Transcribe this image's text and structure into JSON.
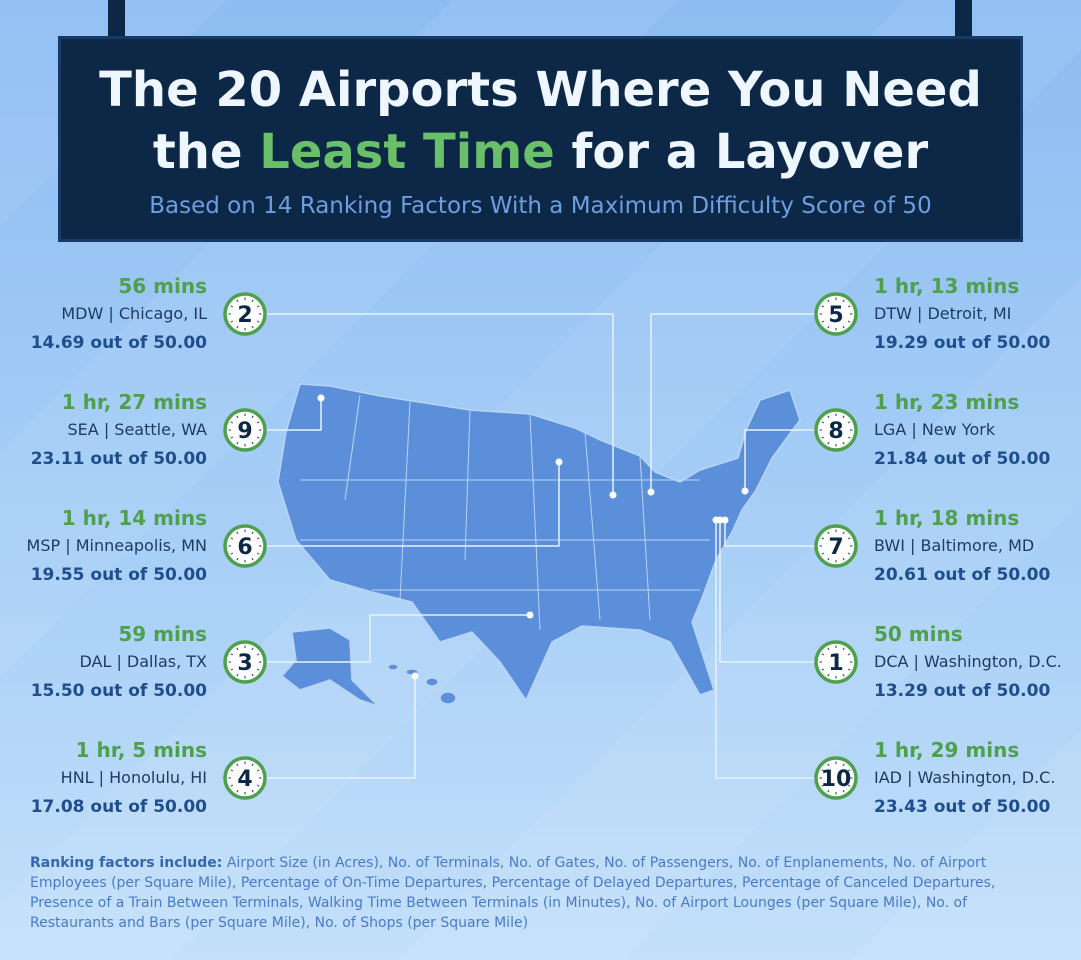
{
  "header": {
    "title_line1": "The 20 Airports Where You Need",
    "title_line2_start": "the",
    "title_highlight": "Least Time",
    "title_line2_end": "for a Layover",
    "subtitle": "Based on 14 Ranking Factors With a Maximum Difficulty Score of 50"
  },
  "left": [
    {
      "rank": 2,
      "time": "56 mins",
      "airport": "MDW | Chicago, IL",
      "score": "14.69 out of 50.00"
    },
    {
      "rank": 9,
      "time": "1 hr, 27 mins",
      "airport": "SEA | Seattle, WA",
      "score": "23.11 out of 50.00"
    },
    {
      "rank": 6,
      "time": "1 hr, 14 mins",
      "airport": "MSP | Minneapolis, MN",
      "score": "19.55 out of 50.00"
    },
    {
      "rank": 3,
      "time": "59 mins",
      "airport": "DAL | Dallas, TX",
      "score": "15.50 out of 50.00"
    },
    {
      "rank": 4,
      "time": "1 hr, 5 mins",
      "airport": "HNL | Honolulu, HI",
      "score": "17.08 out of 50.00"
    }
  ],
  "right": [
    {
      "rank": 5,
      "time": "1 hr, 13 mins",
      "airport": "DTW | Detroit, MI",
      "score": "19.29 out of 50.00"
    },
    {
      "rank": 8,
      "time": "1 hr, 23 mins",
      "airport": "LGA | New York",
      "score": "21.84 out of 50.00"
    },
    {
      "rank": 7,
      "time": "1 hr, 18 mins",
      "airport": "BWI | Baltimore, MD",
      "score": "20.61 out of 50.00"
    },
    {
      "rank": 1,
      "time": "50 mins",
      "airport": "DCA | Washington, D.C.",
      "score": "13.29 out of 50.00"
    },
    {
      "rank": 10,
      "time": "1 hr, 29 mins",
      "airport": "IAD | Washington, D.C.",
      "score": "23.43 out of 50.00"
    }
  ],
  "footer": {
    "label": "Ranking factors include:",
    "text": "Airport Size (in Acres), No. of Terminals, No. of Gates, No. of Passengers, No. of Enplanements, No. of Airport Employees (per Square Mile), Percentage of On-Time Departures, Percentage of Delayed Departures, Percentage of Canceled Departures, Presence of a Train Between Terminals, Walking Time Between Terminals (in Minutes), No. of Airport Lounges (per Square Mile), No. of Restaurants and Bars (per Square Mile), No. of Shops (per Square Mile)"
  }
}
